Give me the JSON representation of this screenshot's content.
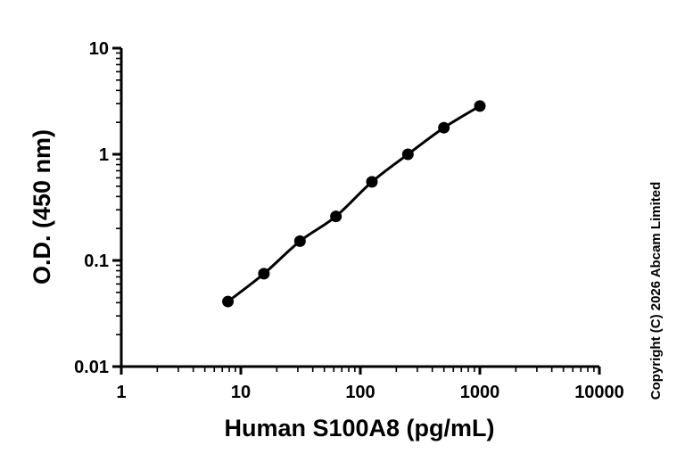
{
  "chart_data": {
    "type": "scatter",
    "title": "",
    "xlabel": "Human S100A8 (pg/mL)",
    "ylabel": "O.D. (450 nm)",
    "xscale": "log",
    "yscale": "log",
    "xlim": [
      1,
      10000
    ],
    "ylim": [
      0.01,
      10
    ],
    "x_ticks": [
      "1",
      "10",
      "100",
      "1000",
      "10000"
    ],
    "y_ticks": [
      "0.01",
      "0.1",
      "1",
      "10"
    ],
    "grid": false,
    "legend": "none",
    "fit_curve": true,
    "series": [
      {
        "x": [
          7.8,
          15.6,
          31.25,
          62.5,
          125,
          250,
          500,
          1000
        ],
        "y": [
          0.041,
          0.075,
          0.152,
          0.26,
          0.55,
          1.0,
          1.78,
          2.85
        ]
      }
    ],
    "colors": {
      "marker": "#000000",
      "line": "#000000"
    },
    "copyright": "Copyright (C) 2026 Abcam Limited"
  }
}
